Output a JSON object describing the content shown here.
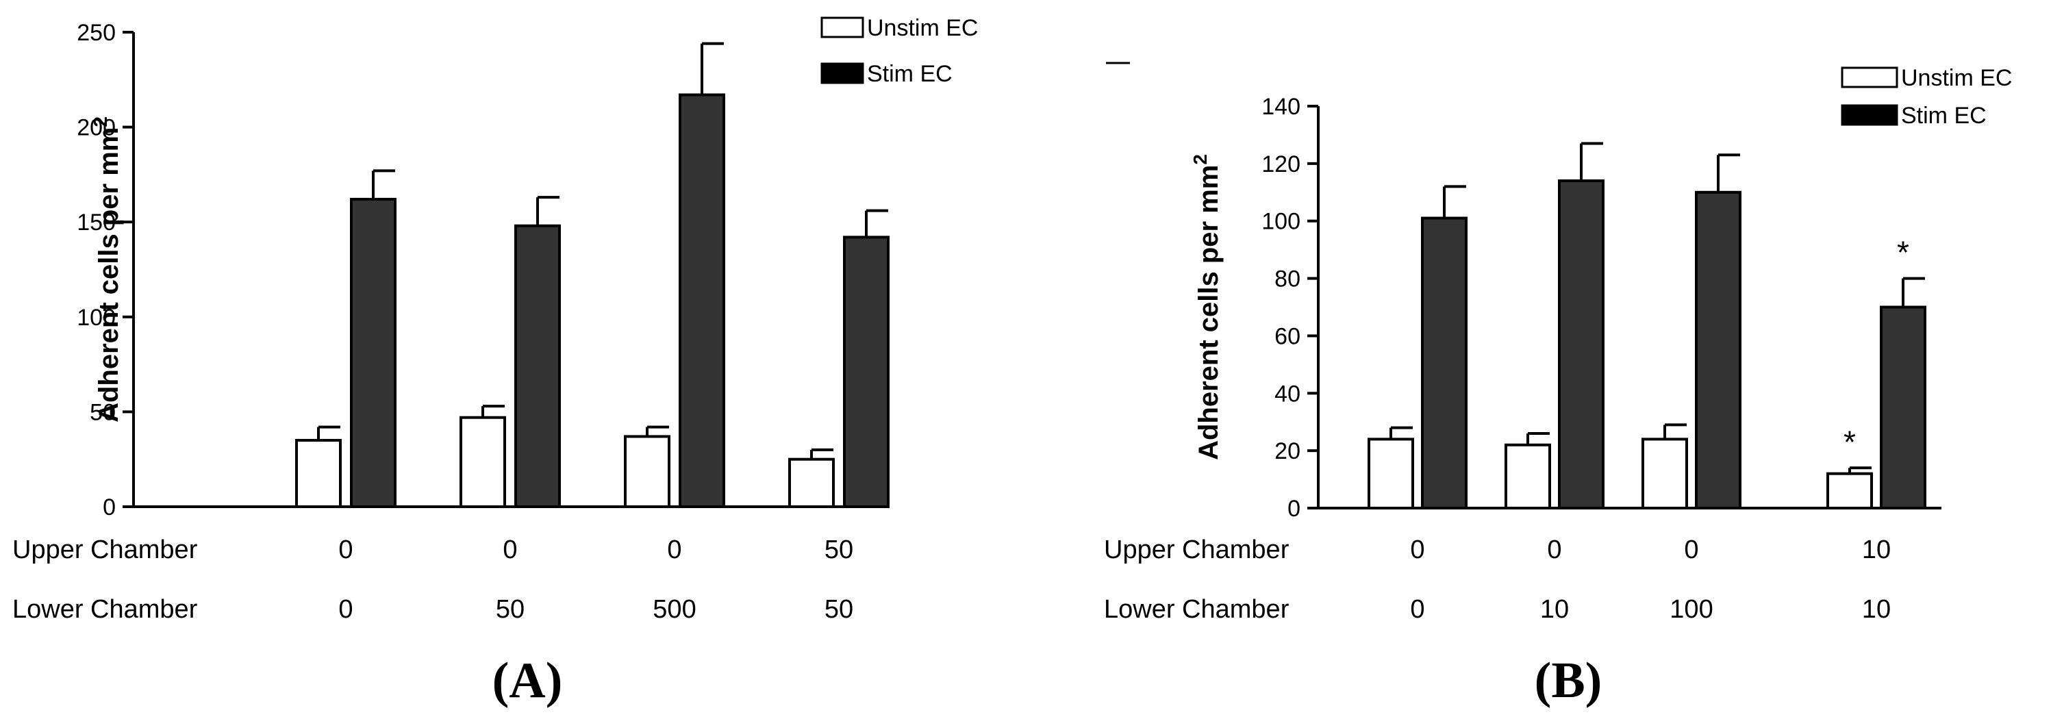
{
  "chart_data": [
    {
      "type": "bar",
      "panel_label": "(A)",
      "ylabel": "Adherent cells per mm",
      "ylabel_sup": "2",
      "ylim": [
        0,
        250
      ],
      "yticks": [
        0,
        50,
        100,
        150,
        200,
        250
      ],
      "grid": false,
      "legend_position": "top-right",
      "row_labels": {
        "upper": "Upper Chamber",
        "lower": "Lower Chamber"
      },
      "categories": [
        {
          "upper": "0",
          "lower": "0"
        },
        {
          "upper": "0",
          "lower": "50"
        },
        {
          "upper": "0",
          "lower": "500"
        },
        {
          "upper": "50",
          "lower": "50"
        }
      ],
      "series": [
        {
          "name": "Unstim EC",
          "color": "#ffffff",
          "values": [
            35,
            47,
            37,
            25
          ],
          "errors": [
            7,
            6,
            5,
            5
          ],
          "annotations": [
            "",
            "",
            "",
            ""
          ]
        },
        {
          "name": "Stim EC",
          "color": "#333333",
          "values": [
            162,
            148,
            217,
            142
          ],
          "errors": [
            15,
            15,
            27,
            14
          ],
          "annotations": [
            "",
            "",
            "",
            ""
          ]
        }
      ]
    },
    {
      "type": "bar",
      "panel_label": "(B)",
      "ylabel": "Adherent cells per mm",
      "ylabel_sup": "2",
      "ylim": [
        0,
        140
      ],
      "yticks": [
        0,
        20,
        40,
        60,
        80,
        100,
        120,
        140
      ],
      "grid": false,
      "legend_position": "top-right",
      "row_labels": {
        "upper": "Upper Chamber",
        "lower": "Lower Chamber"
      },
      "categories": [
        {
          "upper": "0",
          "lower": "0"
        },
        {
          "upper": "0",
          "lower": "10"
        },
        {
          "upper": "0",
          "lower": "100"
        },
        {
          "upper": "10",
          "lower": "10"
        }
      ],
      "series": [
        {
          "name": "Unstim EC",
          "color": "#ffffff",
          "values": [
            24,
            22,
            24,
            12
          ],
          "errors": [
            4,
            4,
            5,
            2
          ],
          "annotations": [
            "",
            "",
            "",
            "*"
          ]
        },
        {
          "name": "Stim EC",
          "color": "#333333",
          "values": [
            101,
            114,
            110,
            70
          ],
          "errors": [
            11,
            13,
            13,
            10
          ],
          "annotations": [
            "",
            "",
            "",
            "*"
          ]
        }
      ]
    }
  ]
}
